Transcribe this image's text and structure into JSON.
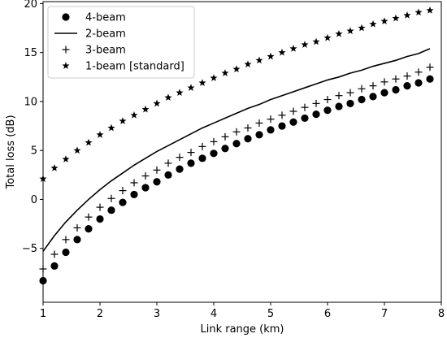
{
  "chart_data": {
    "type": "scatter",
    "xlabel": "Link range (km)",
    "ylabel": "Total loss (dB)",
    "xlim": [
      1,
      8
    ],
    "ylim": [
      -10.5,
      20.2
    ],
    "xticks": [
      1,
      2,
      3,
      4,
      5,
      6,
      7,
      8
    ],
    "yticks": [
      -5,
      0,
      5,
      10,
      15,
      20
    ],
    "grid": false,
    "legend_position": "top-left",
    "series": [
      {
        "name": "4-beam",
        "style": "circle-markers",
        "x": [
          1.0,
          1.2,
          1.4,
          1.6,
          1.8,
          2.0,
          2.2,
          2.4,
          2.6,
          2.8,
          3.0,
          3.2,
          3.4,
          3.6,
          3.8,
          4.0,
          4.2,
          4.4,
          4.6,
          4.8,
          5.0,
          5.2,
          5.4,
          5.6,
          5.8,
          6.0,
          6.2,
          6.4,
          6.6,
          6.8,
          7.0,
          7.2,
          7.4,
          7.6,
          7.8
        ],
        "y": [
          -8.3,
          -6.8,
          -5.4,
          -4.1,
          -3.0,
          -2.0,
          -1.1,
          -0.3,
          0.5,
          1.2,
          1.8,
          2.5,
          3.1,
          3.7,
          4.2,
          4.7,
          5.2,
          5.7,
          6.2,
          6.6,
          7.1,
          7.5,
          7.9,
          8.3,
          8.7,
          9.1,
          9.5,
          9.8,
          10.2,
          10.5,
          10.9,
          11.2,
          11.6,
          11.9,
          12.3
        ]
      },
      {
        "name": "2-beam",
        "style": "solid-line",
        "x": [
          1.0,
          1.2,
          1.4,
          1.6,
          1.8,
          2.0,
          2.2,
          2.4,
          2.6,
          2.8,
          3.0,
          3.2,
          3.4,
          3.6,
          3.8,
          4.0,
          4.2,
          4.4,
          4.6,
          4.8,
          5.0,
          5.2,
          5.4,
          5.6,
          5.8,
          6.0,
          6.2,
          6.4,
          6.6,
          6.8,
          7.0,
          7.2,
          7.4,
          7.6,
          7.8
        ],
        "y": [
          -5.3,
          -3.7,
          -2.3,
          -1.1,
          0.0,
          1.0,
          1.9,
          2.7,
          3.5,
          4.2,
          4.9,
          5.5,
          6.1,
          6.7,
          7.3,
          7.8,
          8.3,
          8.8,
          9.3,
          9.7,
          10.2,
          10.6,
          11.0,
          11.4,
          11.8,
          12.2,
          12.5,
          12.9,
          13.2,
          13.6,
          13.9,
          14.2,
          14.6,
          14.9,
          15.4
        ]
      },
      {
        "name": "3-beam",
        "style": "plus-markers",
        "x": [
          1.0,
          1.2,
          1.4,
          1.6,
          1.8,
          2.0,
          2.2,
          2.4,
          2.6,
          2.8,
          3.0,
          3.2,
          3.4,
          3.6,
          3.8,
          4.0,
          4.2,
          4.4,
          4.6,
          4.8,
          5.0,
          5.2,
          5.4,
          5.6,
          5.8,
          6.0,
          6.2,
          6.4,
          6.6,
          6.8,
          7.0,
          7.2,
          7.4,
          7.6,
          7.8
        ],
        "y": [
          -7.1,
          -5.6,
          -4.1,
          -2.9,
          -1.8,
          -0.8,
          0.1,
          0.9,
          1.7,
          2.4,
          3.0,
          3.7,
          4.3,
          4.8,
          5.4,
          5.9,
          6.4,
          6.9,
          7.3,
          7.8,
          8.2,
          8.6,
          9.0,
          9.4,
          9.8,
          10.2,
          10.6,
          10.9,
          11.3,
          11.6,
          12.0,
          12.3,
          12.6,
          13.0,
          13.5
        ]
      },
      {
        "name": "1-beam [standard]",
        "style": "star-markers",
        "x": [
          1.0,
          1.2,
          1.4,
          1.6,
          1.8,
          2.0,
          2.2,
          2.4,
          2.6,
          2.8,
          3.0,
          3.2,
          3.4,
          3.6,
          3.8,
          4.0,
          4.2,
          4.4,
          4.6,
          4.8,
          5.0,
          5.2,
          5.4,
          5.6,
          5.8,
          6.0,
          6.2,
          6.4,
          6.6,
          6.8,
          7.0,
          7.2,
          7.4,
          7.6,
          7.8
        ],
        "y": [
          2.1,
          3.2,
          4.1,
          5.0,
          5.8,
          6.6,
          7.3,
          8.0,
          8.6,
          9.2,
          9.8,
          10.4,
          10.9,
          11.4,
          11.9,
          12.4,
          12.9,
          13.3,
          13.8,
          14.2,
          14.6,
          15.0,
          15.4,
          15.8,
          16.1,
          16.5,
          16.9,
          17.2,
          17.5,
          17.9,
          18.2,
          18.5,
          18.8,
          19.1,
          19.3
        ]
      }
    ]
  }
}
